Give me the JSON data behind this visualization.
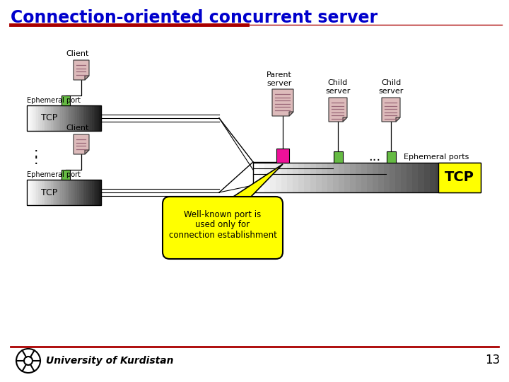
{
  "title": "Connection-oriented concurrent server",
  "title_color": "#0000CC",
  "title_fontsize": 17,
  "bg_color": "#FFFFFF",
  "red_line_color": "#AA0000",
  "footer_text": "University of Kurdistan",
  "page_number": "13",
  "tcp_bg_color": "#FFFF00",
  "well_known_text": "Well-known port is\nused only for\nconnection establishment",
  "well_known_bg": "#FFFF00",
  "ephemeral_port_label": "Ephemeral port",
  "ephemeral_ports_label": "Ephemeral ports",
  "client_label": "Client",
  "parent_server_label": "Parent\nserver",
  "child_server_label1": "Child\nserver",
  "child_server_label2": "Child\nserver",
  "green_port_color": "#66BB44",
  "magenta_port_color": "#EE1199",
  "doc_color": "#DDBBBB",
  "doc_line_color": "#996677",
  "doc_fold_color": "#BB9999"
}
